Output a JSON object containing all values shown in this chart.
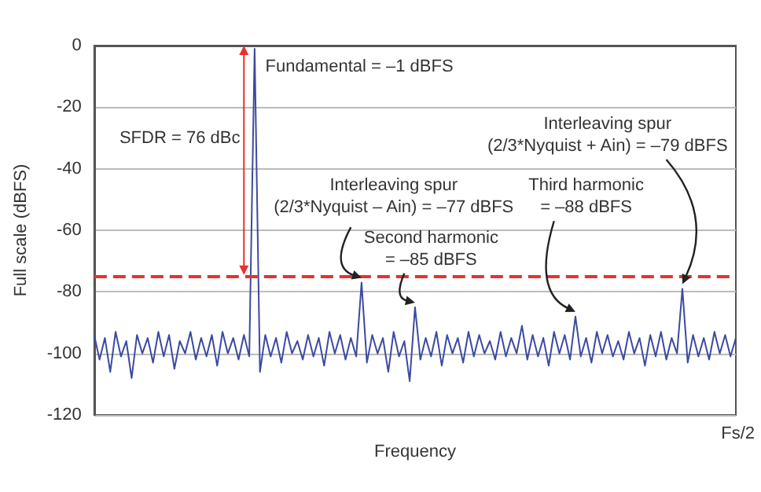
{
  "chart_data": {
    "type": "line",
    "xlabel": "Frequency",
    "ylabel": "Full scale (dBFS)",
    "ylim": [
      -120,
      0
    ],
    "yticks": [
      -120,
      -100,
      -80,
      -60,
      -40,
      -20,
      0
    ],
    "grid": "y",
    "categories": [
      null,
      null,
      null,
      null,
      null,
      null,
      null,
      null,
      null,
      null,
      null,
      null,
      null,
      null,
      null,
      null,
      null,
      null,
      null,
      null,
      null,
      null,
      null,
      null,
      null,
      null,
      null,
      null,
      null,
      null,
      null,
      null,
      null,
      null,
      null,
      null,
      null,
      null,
      null,
      null,
      null,
      null,
      null,
      null,
      null,
      null,
      null,
      null,
      null,
      null,
      null,
      null,
      null,
      null,
      null,
      null,
      null,
      null,
      null,
      null,
      null,
      null,
      null,
      null,
      null,
      null,
      null,
      null,
      null,
      null,
      null,
      null,
      null,
      null,
      null,
      null,
      null,
      null,
      null,
      null,
      null,
      null,
      null,
      null,
      null,
      null,
      null,
      null,
      null,
      null,
      null,
      null,
      null,
      null,
      null,
      null,
      null,
      null,
      null,
      null,
      null,
      null,
      null,
      null,
      null,
      null,
      null,
      null,
      null,
      null,
      null,
      null,
      null,
      null,
      null,
      null,
      null,
      null,
      null,
      null,
      null
    ],
    "series": [
      {
        "color": "#3b4aa0",
        "values": [
          -94,
          -102,
          -95,
          -106,
          -93,
          -101,
          -96,
          -108,
          -94,
          -100,
          -95,
          -103,
          -93,
          -101,
          -94,
          -105,
          -96,
          -100,
          -93,
          -102,
          -95,
          -101,
          -94,
          -104,
          -93,
          -100,
          -95,
          -102,
          -94,
          -101,
          -1,
          -106,
          -94,
          -101,
          -95,
          -103,
          -93,
          -100,
          -96,
          -102,
          -94,
          -101,
          -95,
          -104,
          -93,
          -100,
          -94,
          -102,
          -95,
          -101,
          -77,
          -103,
          -94,
          -100,
          -95,
          -106,
          -93,
          -101,
          -96,
          -109,
          -85,
          -102,
          -95,
          -101,
          -93,
          -104,
          -94,
          -100,
          -95,
          -103,
          -93,
          -101,
          -94,
          -100,
          -96,
          -102,
          -93,
          -101,
          -95,
          -100,
          -91,
          -102,
          -94,
          -101,
          -95,
          -104,
          -93,
          -100,
          -94,
          -102,
          -88,
          -101,
          -95,
          -103,
          -93,
          -100,
          -94,
          -101,
          -96,
          -102,
          -93,
          -100,
          -95,
          -104,
          -94,
          -101,
          -93,
          -102,
          -95,
          -100,
          -79,
          -103,
          -94,
          -101,
          -95,
          -102,
          -93,
          -100,
          -94,
          -101,
          -95
        ]
      }
    ],
    "ref_lines": [
      {
        "axis": "y",
        "value": -75,
        "color": "#e8312a",
        "line_style": "dashed"
      }
    ],
    "annotations": [
      "Fundamental = –1 dBFS",
      "SFDR = 76 dBc",
      "Interleaving spur\n(2/3*Nyquist – Ain) = –77 dBFS",
      "Second harmonic\n= –85 dBFS",
      "Third harmonic\n= –88 dBFS",
      "Interleaving spur\n(2/3*Nyquist + Ain) = –79 dBFS",
      "Fs/2"
    ]
  }
}
